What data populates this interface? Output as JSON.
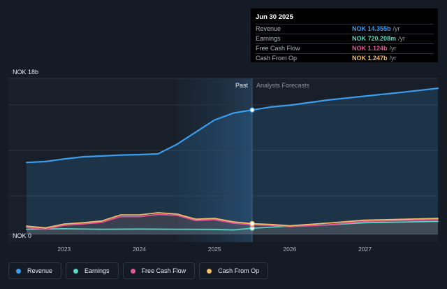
{
  "chart_data": {
    "type": "area",
    "y_unit": "NOK b",
    "ylim": [
      0,
      18
    ],
    "y_ticks": [
      {
        "value": 18,
        "label": "NOK 18b"
      },
      {
        "value": 0,
        "label": "NOK 0"
      }
    ],
    "xlim": [
      2022.5,
      2027.97
    ],
    "x_ticks": [
      {
        "value": 2023,
        "label": "2023"
      },
      {
        "value": 2024,
        "label": "2024"
      },
      {
        "value": 2025,
        "label": "2025"
      },
      {
        "value": 2026,
        "label": "2026"
      },
      {
        "value": 2027,
        "label": "2027"
      }
    ],
    "divider_x": 2025.5,
    "shaded_past_start": 2024.5,
    "past_label": "Past",
    "forecast_label": "Analysts Forecasts",
    "grid": true,
    "legend_position": "bottom",
    "series": [
      {
        "name": "Revenue",
        "color": "#3b9ded",
        "filled": true,
        "points": [
          [
            2022.5,
            8.3
          ],
          [
            2022.75,
            8.4
          ],
          [
            2023.0,
            8.7
          ],
          [
            2023.25,
            8.95
          ],
          [
            2023.5,
            9.05
          ],
          [
            2023.75,
            9.15
          ],
          [
            2024.0,
            9.2
          ],
          [
            2024.25,
            9.3
          ],
          [
            2024.5,
            10.4
          ],
          [
            2024.75,
            11.8
          ],
          [
            2025.0,
            13.2
          ],
          [
            2025.25,
            14.0
          ],
          [
            2025.5,
            14.355
          ],
          [
            2025.75,
            14.7
          ],
          [
            2026.0,
            14.9
          ],
          [
            2026.5,
            15.5
          ],
          [
            2027.0,
            15.95
          ],
          [
            2027.5,
            16.4
          ],
          [
            2027.97,
            16.85
          ]
        ]
      },
      {
        "name": "Earnings",
        "color": "#55d6c2",
        "filled": false,
        "points": [
          [
            2022.5,
            0.6
          ],
          [
            2023.0,
            0.65
          ],
          [
            2023.5,
            0.6
          ],
          [
            2024.0,
            0.62
          ],
          [
            2024.5,
            0.6
          ],
          [
            2025.0,
            0.58
          ],
          [
            2025.25,
            0.52
          ],
          [
            2025.5,
            0.72
          ],
          [
            2026.0,
            0.95
          ],
          [
            2026.5,
            1.1
          ],
          [
            2027.0,
            1.35
          ],
          [
            2027.97,
            1.5
          ]
        ]
      },
      {
        "name": "Free Cash Flow",
        "color": "#e5549a",
        "filled": false,
        "points": [
          [
            2022.5,
            0.8
          ],
          [
            2022.75,
            0.6
          ],
          [
            2023.0,
            1.05
          ],
          [
            2023.25,
            1.2
          ],
          [
            2023.5,
            1.4
          ],
          [
            2023.75,
            2.05
          ],
          [
            2024.0,
            2.05
          ],
          [
            2024.25,
            2.3
          ],
          [
            2024.5,
            2.2
          ],
          [
            2024.75,
            1.6
          ],
          [
            2025.0,
            1.7
          ],
          [
            2025.25,
            1.3
          ],
          [
            2025.5,
            1.124
          ],
          [
            2025.75,
            1.05
          ],
          [
            2026.0,
            0.9
          ],
          [
            2026.5,
            1.1
          ],
          [
            2027.0,
            1.5
          ],
          [
            2027.97,
            1.7
          ]
        ]
      },
      {
        "name": "Cash From Op",
        "color": "#f2bd66",
        "filled": false,
        "points": [
          [
            2022.5,
            0.95
          ],
          [
            2022.75,
            0.75
          ],
          [
            2023.0,
            1.2
          ],
          [
            2023.25,
            1.35
          ],
          [
            2023.5,
            1.55
          ],
          [
            2023.75,
            2.25
          ],
          [
            2024.0,
            2.25
          ],
          [
            2024.25,
            2.5
          ],
          [
            2024.5,
            2.35
          ],
          [
            2024.75,
            1.75
          ],
          [
            2025.0,
            1.85
          ],
          [
            2025.25,
            1.45
          ],
          [
            2025.5,
            1.247
          ],
          [
            2025.75,
            1.15
          ],
          [
            2026.0,
            1.0
          ],
          [
            2026.5,
            1.3
          ],
          [
            2027.0,
            1.65
          ],
          [
            2027.97,
            1.85
          ]
        ]
      }
    ]
  },
  "tooltip": {
    "date": "Jun 30 2025",
    "rows": [
      {
        "label": "Revenue",
        "value": "NOK 14.355b",
        "unit": "/yr",
        "color": "#3b9ded"
      },
      {
        "label": "Earnings",
        "value": "NOK 720.208m",
        "unit": "/yr",
        "color": "#55d6c2"
      },
      {
        "label": "Free Cash Flow",
        "value": "NOK 1.124b",
        "unit": "/yr",
        "color": "#e5549a"
      },
      {
        "label": "Cash From Op",
        "value": "NOK 1.247b",
        "unit": "/yr",
        "color": "#f2bd66"
      }
    ]
  },
  "legend": [
    {
      "label": "Revenue",
      "color": "#3b9ded"
    },
    {
      "label": "Earnings",
      "color": "#55d6c2"
    },
    {
      "label": "Free Cash Flow",
      "color": "#e5549a"
    },
    {
      "label": "Cash From Op",
      "color": "#f2bd66"
    }
  ]
}
